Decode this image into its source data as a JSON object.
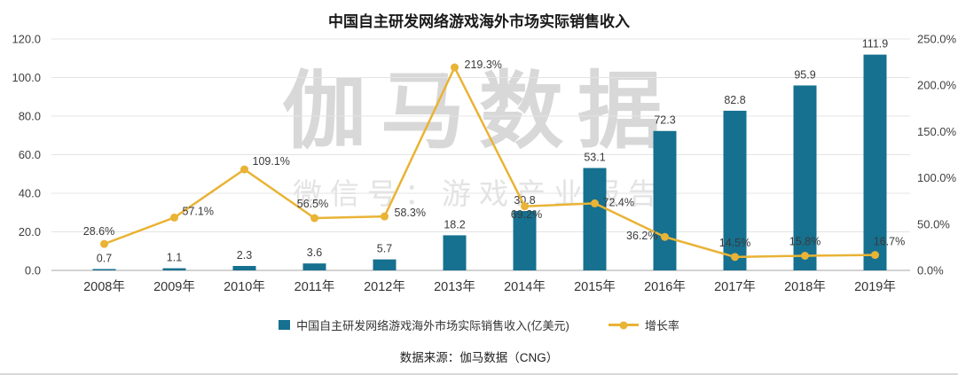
{
  "title": "中国自主研发网络游戏海外市场实际销售收入",
  "watermark": {
    "line1": "伽马数据",
    "line2": "微信号：游戏产业报告"
  },
  "legend": [
    {
      "label": "中国自主研发网络游戏海外市场实际销售收入(亿美元)",
      "type": "bar"
    },
    {
      "label": "增长率",
      "type": "line"
    }
  ],
  "source": "数据来源：伽马数据（CNG）",
  "colors": {
    "bar": "#16708f",
    "line": "#e9b335",
    "grid": "#e4e4e4",
    "axis_line": "#a6a6a6",
    "watermark": "#d8d8d8",
    "watermark_sub": "#e3e3e3"
  },
  "chart_data": {
    "type": "bar",
    "subtype": "bar+line combo, line on secondary percent axis",
    "title": "中国自主研发网络游戏海外市场实际销售收入",
    "categories": [
      "2008年",
      "2009年",
      "2010年",
      "2011年",
      "2012年",
      "2013年",
      "2014年",
      "2015年",
      "2016年",
      "2017年",
      "2018年",
      "2019年"
    ],
    "series": [
      {
        "name": "中国自主研发网络游戏海外市场实际销售收入(亿美元)",
        "type": "bar",
        "axis": "left",
        "values": [
          0.7,
          1.1,
          2.3,
          3.6,
          5.7,
          18.2,
          30.8,
          53.1,
          72.3,
          82.8,
          95.9,
          111.9
        ]
      },
      {
        "name": "增长率",
        "type": "line",
        "axis": "right",
        "values_percent": [
          28.6,
          57.1,
          109.1,
          56.5,
          58.3,
          219.3,
          69.2,
          72.4,
          36.2,
          14.5,
          15.8,
          16.7
        ]
      }
    ],
    "left_axis": {
      "min": 0,
      "max": 120,
      "step": 20,
      "tick_labels": [
        "0.0",
        "20.0",
        "40.0",
        "60.0",
        "80.0",
        "100.0",
        "120.0"
      ]
    },
    "right_axis": {
      "min": 0,
      "max": 250,
      "step": 50,
      "tick_labels": [
        "0.0%",
        "50.0%",
        "100.0%",
        "150.0%",
        "200.0%",
        "250.0%"
      ]
    },
    "grid": "horizontal",
    "legend_position": "bottom",
    "data_labels": true
  }
}
